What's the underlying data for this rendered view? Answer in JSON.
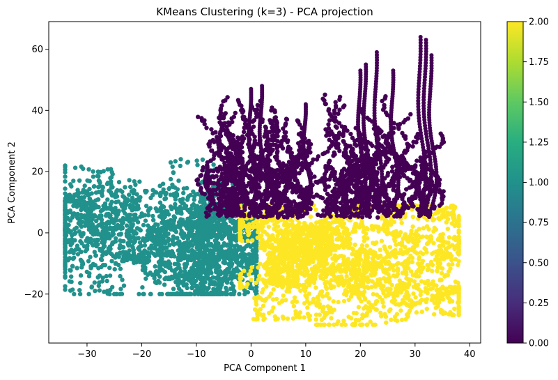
{
  "chart_data": {
    "type": "scatter",
    "title": "KMeans Clustering (k=3) - PCA projection",
    "xlabel": "PCA Component 1",
    "ylabel": "PCA Component 2",
    "xlim": [
      -37,
      42
    ],
    "ylim": [
      -36,
      69
    ],
    "xticks": [
      -30,
      -20,
      -10,
      0,
      10,
      20,
      30,
      40
    ],
    "xtick_labels": [
      "−30",
      "−20",
      "−10",
      "0",
      "10",
      "20",
      "30",
      "40"
    ],
    "yticks": [
      -20,
      0,
      20,
      40,
      60
    ],
    "ytick_labels": [
      "−20",
      "0",
      "20",
      "40",
      "60"
    ],
    "grid": false,
    "colormap": "viridis",
    "colorbar": {
      "range": [
        0.0,
        2.0
      ],
      "ticks": [
        0.0,
        0.25,
        0.5,
        0.75,
        1.0,
        1.25,
        1.5,
        1.75,
        2.0
      ],
      "tick_labels": [
        "0.00",
        "0.25",
        "0.50",
        "0.75",
        "1.00",
        "1.25",
        "1.50",
        "1.75",
        "2.00"
      ]
    },
    "clusters": [
      {
        "label": 0,
        "color": "#440154",
        "x_range": [
          -9,
          33
        ],
        "y_range": [
          5,
          64
        ],
        "peak_points": [
          [
            -8,
            22
          ],
          [
            0,
            47
          ],
          [
            2,
            48
          ],
          [
            10,
            42
          ],
          [
            20,
            53
          ],
          [
            21,
            55
          ],
          [
            23,
            59
          ],
          [
            26,
            53
          ],
          [
            31,
            64
          ],
          [
            32,
            63
          ],
          [
            33,
            58
          ]
        ]
      },
      {
        "label": 1,
        "color": "#21918c",
        "x_range": [
          -34,
          1
        ],
        "y_range": [
          -20,
          30
        ],
        "peak_points": [
          [
            -34,
            -6
          ],
          [
            -26,
            18
          ],
          [
            -22,
            28
          ],
          [
            -18,
            30
          ],
          [
            -8,
            16
          ],
          [
            -3,
            -20
          ]
        ]
      },
      {
        "label": 2,
        "color": "#fde725",
        "x_range": [
          -2,
          38
        ],
        "y_range": [
          -30,
          9
        ],
        "peak_points": [
          [
            -2,
            -20
          ],
          [
            2,
            8
          ],
          [
            21,
            -30
          ],
          [
            30,
            9
          ],
          [
            36,
            4
          ],
          [
            38,
            -18
          ],
          [
            35,
            -27
          ]
        ]
      }
    ]
  }
}
